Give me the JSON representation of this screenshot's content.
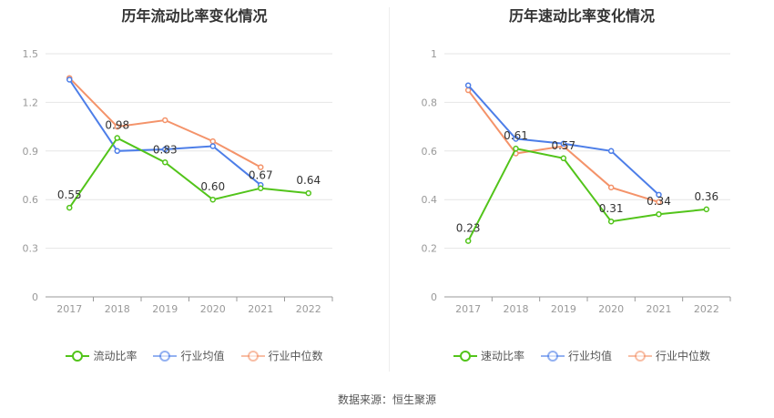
{
  "chart_data": [
    {
      "type": "line",
      "title": "历年流动比率变化情况",
      "categories": [
        "2017",
        "2018",
        "2019",
        "2020",
        "2021",
        "2022"
      ],
      "ylim": [
        0,
        1.5
      ],
      "yticks": [
        "0",
        "0.3",
        "0.6",
        "0.9",
        "1.2",
        "1.5"
      ],
      "series": [
        {
          "name": "流动比率",
          "values": [
            0.55,
            0.98,
            0.83,
            0.6,
            0.67,
            0.64
          ],
          "labels": [
            "0.55",
            "0.98",
            "0.83",
            "0.60",
            "0.67",
            "0.64"
          ]
        },
        {
          "name": "行业均值",
          "values": [
            1.34,
            0.9,
            0.91,
            0.93,
            0.69,
            null
          ]
        },
        {
          "name": "行业中位数",
          "values": [
            1.35,
            1.05,
            1.09,
            0.96,
            0.8,
            null
          ]
        }
      ],
      "grid": true,
      "legend_position": "bottom"
    },
    {
      "type": "line",
      "title": "历年速动比率变化情况",
      "categories": [
        "2017",
        "2018",
        "2019",
        "2020",
        "2021",
        "2022"
      ],
      "ylim": [
        0,
        1
      ],
      "yticks": [
        "0",
        "0.2",
        "0.4",
        "0.6",
        "0.8",
        "1"
      ],
      "series": [
        {
          "name": "速动比率",
          "values": [
            0.23,
            0.61,
            0.57,
            0.31,
            0.34,
            0.36
          ],
          "labels": [
            "0.23",
            "0.61",
            "0.57",
            "0.31",
            "0.34",
            "0.36"
          ]
        },
        {
          "name": "行业均值",
          "values": [
            0.87,
            0.65,
            0.63,
            0.6,
            0.42,
            null
          ]
        },
        {
          "name": "行业中位数",
          "values": [
            0.85,
            0.59,
            0.62,
            0.45,
            0.39,
            null
          ]
        }
      ],
      "grid": true,
      "legend_position": "bottom"
    }
  ],
  "colors": {
    "main": "#52c41a",
    "avg": "#4d7ee8",
    "median": "#f4936a",
    "grid": "#e6e6e6",
    "axis": "#999999"
  },
  "footer": "数据来源：恒生聚源"
}
